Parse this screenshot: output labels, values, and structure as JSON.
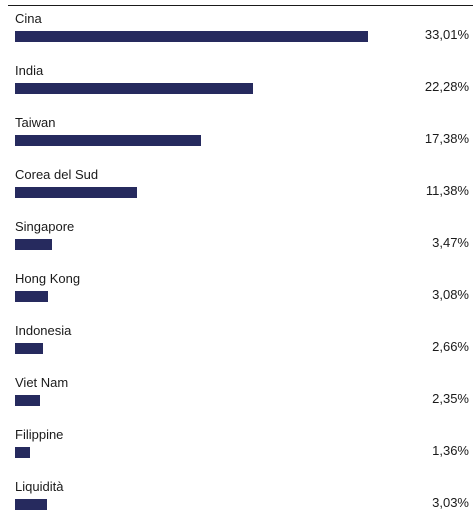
{
  "chart_data": {
    "type": "bar",
    "orientation": "horizontal",
    "title": "",
    "xlabel": "",
    "ylabel": "",
    "categories": [
      "Cina",
      "India",
      "Taiwan",
      "Corea del Sud",
      "Singapore",
      "Hong Kong",
      "Indonesia",
      "Viet Nam",
      "Filippine",
      "Liquidità"
    ],
    "values": [
      33.01,
      22.28,
      17.38,
      11.38,
      3.47,
      3.08,
      2.66,
      2.35,
      1.36,
      3.03
    ],
    "value_labels": [
      "33,01%",
      "22,28%",
      "17,38%",
      "11,38%",
      "3,47%",
      "3,08%",
      "2,66%",
      "2,35%",
      "1,36%",
      "3,03%"
    ],
    "xlim": [
      0,
      33.01
    ],
    "grid": false,
    "bar_color": "#262a5e"
  }
}
